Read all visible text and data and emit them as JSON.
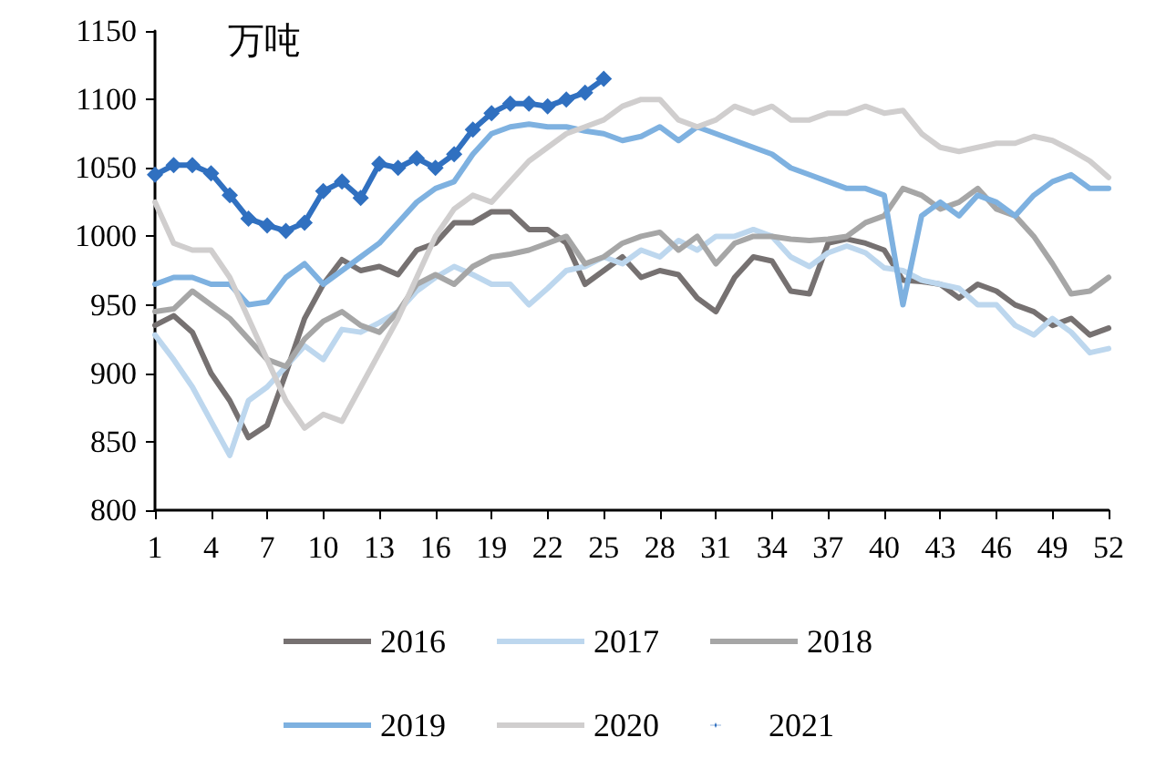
{
  "chart_data": {
    "type": "line",
    "ylabel": "万吨",
    "x": [
      1,
      2,
      3,
      4,
      5,
      6,
      7,
      8,
      9,
      10,
      11,
      12,
      13,
      14,
      15,
      16,
      17,
      18,
      19,
      20,
      21,
      22,
      23,
      24,
      25,
      26,
      27,
      28,
      29,
      30,
      31,
      32,
      33,
      34,
      35,
      36,
      37,
      38,
      39,
      40,
      41,
      42,
      43,
      44,
      45,
      46,
      47,
      48,
      49,
      50,
      51,
      52
    ],
    "xlim": [
      1,
      52
    ],
    "xticks": [
      1,
      4,
      7,
      10,
      13,
      16,
      19,
      22,
      25,
      28,
      31,
      34,
      37,
      40,
      43,
      46,
      49,
      52
    ],
    "ylim": [
      800,
      1150
    ],
    "yticks": [
      800,
      850,
      900,
      950,
      1000,
      1050,
      1100,
      1150
    ],
    "grid": false,
    "legend": "bottom",
    "marker": "none",
    "line_style": "solid",
    "series": [
      {
        "name": "2016",
        "color": "#767171",
        "values": [
          935,
          942,
          930,
          900,
          880,
          853,
          862,
          900,
          940,
          965,
          983,
          975,
          978,
          972,
          990,
          995,
          1010,
          1010,
          1018,
          1018,
          1005,
          1005,
          995,
          965,
          975,
          985,
          970,
          975,
          972,
          955,
          945,
          970,
          985,
          982,
          960,
          958,
          995,
          998,
          995,
          990,
          968,
          967,
          965,
          955,
          965,
          960,
          950,
          945,
          935,
          940,
          928,
          933
        ]
      },
      {
        "name": "2017",
        "color": "#bdd7ee",
        "values": [
          928,
          910,
          890,
          865,
          840,
          880,
          890,
          905,
          920,
          910,
          932,
          930,
          937,
          945,
          960,
          970,
          978,
          972,
          965,
          965,
          950,
          962,
          975,
          978,
          985,
          980,
          990,
          985,
          997,
          990,
          1000,
          1000,
          1005,
          1000,
          985,
          978,
          988,
          993,
          988,
          977,
          975,
          968,
          965,
          962,
          950,
          950,
          935,
          928,
          940,
          930,
          915,
          918
        ]
      },
      {
        "name": "2018",
        "color": "#a6a6a6",
        "values": [
          945,
          947,
          960,
          950,
          940,
          925,
          910,
          905,
          925,
          938,
          945,
          935,
          930,
          945,
          965,
          972,
          965,
          978,
          985,
          987,
          990,
          995,
          1000,
          980,
          985,
          995,
          1000,
          1003,
          990,
          1000,
          980,
          995,
          1000,
          1000,
          998,
          997,
          998,
          1000,
          1010,
          1015,
          1035,
          1030,
          1020,
          1025,
          1035,
          1020,
          1015,
          1000,
          980,
          958,
          960,
          970
        ]
      },
      {
        "name": "2019",
        "color": "#7eb1e0",
        "values": [
          965,
          970,
          970,
          965,
          965,
          950,
          952,
          970,
          980,
          965,
          975,
          985,
          995,
          1010,
          1025,
          1035,
          1040,
          1060,
          1075,
          1080,
          1082,
          1080,
          1080,
          1077,
          1075,
          1070,
          1073,
          1080,
          1070,
          1080,
          1075,
          1070,
          1065,
          1060,
          1050,
          1045,
          1040,
          1035,
          1035,
          1030,
          950,
          1015,
          1025,
          1015,
          1030,
          1025,
          1015,
          1030,
          1040,
          1045,
          1035,
          1035
        ]
      },
      {
        "name": "2020",
        "color": "#d0cece",
        "values": [
          1025,
          995,
          990,
          990,
          970,
          940,
          910,
          880,
          860,
          870,
          865,
          890,
          915,
          940,
          970,
          1000,
          1020,
          1030,
          1025,
          1040,
          1055,
          1065,
          1075,
          1080,
          1085,
          1095,
          1100,
          1100,
          1085,
          1080,
          1085,
          1095,
          1090,
          1095,
          1085,
          1085,
          1090,
          1090,
          1095,
          1090,
          1092,
          1075,
          1065,
          1062,
          1065,
          1068,
          1068,
          1073,
          1070,
          1063,
          1055,
          1043
        ]
      },
      {
        "name": "2021",
        "color": "#3070c0",
        "marker": "diamond",
        "x": [
          1,
          2,
          3,
          4,
          5,
          6,
          7,
          8,
          9,
          10,
          11,
          12,
          13,
          14,
          15,
          16,
          17,
          18,
          19,
          20,
          21,
          22,
          23,
          24,
          25
        ],
        "values": [
          1045,
          1052,
          1052,
          1046,
          1030,
          1013,
          1008,
          1004,
          1010,
          1033,
          1040,
          1028,
          1053,
          1050,
          1057,
          1050,
          1060,
          1078,
          1090,
          1097,
          1097,
          1095,
          1100,
          1105,
          1115
        ]
      }
    ]
  }
}
